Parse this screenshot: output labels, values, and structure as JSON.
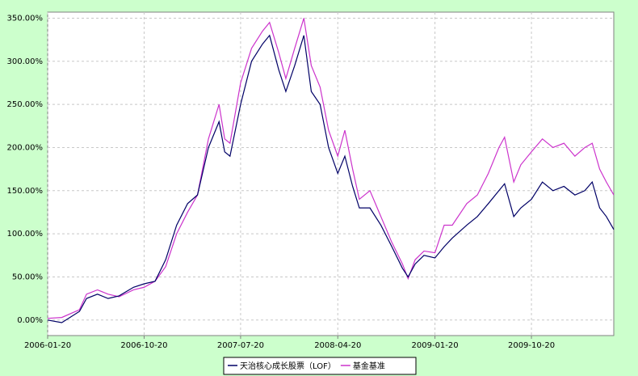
{
  "chart_data": {
    "type": "line",
    "x": [
      "2006-01-20",
      "2006-03-01",
      "2006-04-20",
      "2006-05-10",
      "2006-06-10",
      "2006-07-10",
      "2006-08-10",
      "2006-09-20",
      "2006-10-20",
      "2006-11-20",
      "2006-12-20",
      "2007-01-20",
      "2007-02-20",
      "2007-03-20",
      "2007-04-20",
      "2007-05-20",
      "2007-06-05",
      "2007-06-20",
      "2007-07-20",
      "2007-08-20",
      "2007-09-20",
      "2007-10-10",
      "2007-11-05",
      "2007-11-25",
      "2007-12-20",
      "2008-01-15",
      "2008-02-05",
      "2008-03-01",
      "2008-03-25",
      "2008-04-20",
      "2008-05-10",
      "2008-06-01",
      "2008-06-20",
      "2008-07-20",
      "2008-08-20",
      "2008-09-20",
      "2008-10-20",
      "2008-11-05",
      "2008-11-25",
      "2008-12-20",
      "2009-01-20",
      "2009-02-15",
      "2009-03-10",
      "2009-04-20",
      "2009-05-20",
      "2009-06-20",
      "2009-07-20",
      "2009-08-05",
      "2009-08-31",
      "2009-09-20",
      "2009-10-20",
      "2009-11-20",
      "2009-12-20",
      "2010-01-20",
      "2010-02-20",
      "2010-03-20",
      "2010-04-10",
      "2010-05-01",
      "2010-05-20",
      "2010-06-10"
    ],
    "series": [
      {
        "name": "天治核心成长股票（LOF）",
        "color": "#000066",
        "values": [
          0,
          -3,
          10,
          25,
          30,
          25,
          28,
          38,
          42,
          45,
          70,
          110,
          135,
          145,
          200,
          230,
          195,
          190,
          250,
          300,
          320,
          330,
          290,
          265,
          295,
          330,
          265,
          250,
          200,
          170,
          190,
          155,
          130,
          130,
          110,
          85,
          60,
          50,
          65,
          75,
          72,
          85,
          95,
          110,
          120,
          135,
          150,
          158,
          120,
          130,
          140,
          160,
          150,
          155,
          145,
          150,
          160,
          130,
          120,
          105
        ]
      },
      {
        "name": "基金基准",
        "color": "#cc33cc",
        "values": [
          2,
          3,
          12,
          30,
          35,
          30,
          27,
          35,
          38,
          45,
          62,
          100,
          125,
          145,
          210,
          250,
          210,
          205,
          275,
          315,
          335,
          345,
          310,
          280,
          315,
          350,
          295,
          270,
          220,
          190,
          220,
          175,
          140,
          150,
          120,
          90,
          65,
          48,
          70,
          80,
          78,
          110,
          110,
          135,
          145,
          170,
          200,
          212,
          160,
          180,
          195,
          210,
          200,
          205,
          190,
          200,
          205,
          175,
          160,
          145
        ]
      }
    ],
    "xlim": [
      "2006-01-20",
      "2010-06-10"
    ],
    "xticks": [
      "2006-01-20",
      "2006-10-20",
      "2007-07-20",
      "2008-04-20",
      "2009-01-20",
      "2009-10-20"
    ],
    "ylim": [
      -18,
      357
    ],
    "yticks": [
      {
        "value": 0,
        "label": "0.00%"
      },
      {
        "value": 50,
        "label": "50.00%"
      },
      {
        "value": 100,
        "label": "100.00%"
      },
      {
        "value": 150,
        "label": "150.00%"
      },
      {
        "value": 200,
        "label": "200.00%"
      },
      {
        "value": 250,
        "label": "250.00%"
      },
      {
        "value": 300,
        "label": "300.00%"
      },
      {
        "value": 350,
        "label": "350.00%"
      }
    ],
    "grid": true
  }
}
